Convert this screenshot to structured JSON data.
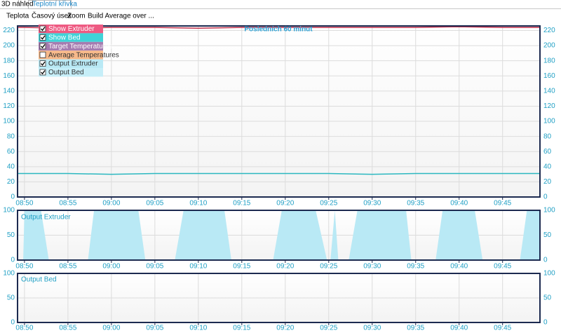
{
  "tabs": [
    "3D náhled",
    "Teplotní křivka"
  ],
  "menu": [
    "Teplota",
    "Časový úsek",
    "Zoom",
    "Build Average over ..."
  ],
  "legend": [
    {
      "name": "Show Extruder",
      "color": "#ee5a82",
      "checked": true
    },
    {
      "name": "Show Bed",
      "color": "#3fd3d8",
      "checked": true
    },
    {
      "name": "Target Temperatures",
      "color": "#a57cb0",
      "checked": true
    },
    {
      "name": "Average Temperatures",
      "color": "#f7b98a",
      "checked": false
    },
    {
      "name": "Output Extruder",
      "color": "#b9e9f5",
      "checked": true
    },
    {
      "name": "Output Bed",
      "color": "#c6eef8",
      "checked": true
    }
  ],
  "chart_data": [
    {
      "type": "line",
      "title": "Posledních 60 minut",
      "x": [
        529.2,
        530,
        535,
        540,
        545,
        550,
        555,
        560,
        565,
        570,
        575,
        580,
        585,
        589.3
      ],
      "series": [
        {
          "color": "#c0304c",
          "values": [
            224,
            224,
            223,
            224,
            224,
            223,
            224,
            224,
            224,
            224,
            224,
            225,
            224,
            224
          ]
        },
        {
          "color": "#2cb8c0",
          "values": [
            31,
            31,
            31,
            30,
            31,
            31,
            31,
            31,
            31,
            30,
            31,
            31,
            31,
            31
          ]
        }
      ],
      "xlim": [
        529.2,
        589.3
      ],
      "xticks": [
        {
          "value": 530,
          "label": "08:50"
        },
        {
          "value": 535,
          "label": "08:55"
        },
        {
          "value": 540,
          "label": "09:00"
        },
        {
          "value": 545,
          "label": "09:05"
        },
        {
          "value": 550,
          "label": "09:10"
        },
        {
          "value": 555,
          "label": "09:15"
        },
        {
          "value": 560,
          "label": "09:20"
        },
        {
          "value": 565,
          "label": "09:25"
        },
        {
          "value": 570,
          "label": "09:30"
        },
        {
          "value": 575,
          "label": "09:35"
        },
        {
          "value": 580,
          "label": "09:40"
        },
        {
          "value": 585,
          "label": "09:45"
        }
      ],
      "ylim": [
        0,
        226
      ],
      "yticks": [
        0,
        20,
        40,
        60,
        80,
        100,
        120,
        140,
        160,
        180,
        200,
        220
      ],
      "grid": true
    },
    {
      "type": "area",
      "title": "Output Extruder",
      "x": [
        529.2,
        529.85,
        530.0,
        531.9,
        532.8,
        537.3,
        538.0,
        543.1,
        543.9,
        547.3,
        548.3,
        553.0,
        553.8,
        558.6,
        559.6,
        563.5,
        564.8,
        565.2,
        565.7,
        566.1,
        567.3,
        568.3,
        573.9,
        574.5,
        577.3,
        578.1,
        581.8,
        582.7,
        587.0,
        587.8,
        589.3
      ],
      "series": [
        {
          "color": "#b9e9f5",
          "values": [
            0,
            0,
            100,
            100,
            0,
            0,
            100,
            100,
            0,
            0,
            100,
            100,
            0,
            0,
            100,
            100,
            0,
            0,
            100,
            0,
            0,
            100,
            100,
            0,
            0,
            100,
            100,
            0,
            0,
            100,
            100
          ]
        }
      ],
      "xlim": [
        529.2,
        589.3
      ],
      "xticks": [
        {
          "value": 530,
          "label": "08:50"
        },
        {
          "value": 535,
          "label": "08:55"
        },
        {
          "value": 540,
          "label": "09:00"
        },
        {
          "value": 545,
          "label": "09:05"
        },
        {
          "value": 550,
          "label": "09:10"
        },
        {
          "value": 555,
          "label": "09:15"
        },
        {
          "value": 560,
          "label": "09:20"
        },
        {
          "value": 565,
          "label": "09:25"
        },
        {
          "value": 570,
          "label": "09:30"
        },
        {
          "value": 575,
          "label": "09:35"
        },
        {
          "value": 580,
          "label": "09:40"
        },
        {
          "value": 585,
          "label": "09:45"
        }
      ],
      "ylim": [
        0,
        100
      ],
      "yticks": [
        0,
        50,
        100
      ],
      "grid": true
    },
    {
      "type": "area",
      "title": "Output Bed",
      "x": [],
      "series": [],
      "xlim": [
        529.2,
        589.3
      ],
      "xticks": [
        {
          "value": 530,
          "label": "08:50"
        },
        {
          "value": 535,
          "label": "08:55"
        },
        {
          "value": 540,
          "label": "09:00"
        },
        {
          "value": 545,
          "label": "09:05"
        },
        {
          "value": 550,
          "label": "09:10"
        },
        {
          "value": 555,
          "label": "09:15"
        },
        {
          "value": 560,
          "label": "09:20"
        },
        {
          "value": 565,
          "label": "09:25"
        },
        {
          "value": 570,
          "label": "09:30"
        },
        {
          "value": 575,
          "label": "09:35"
        },
        {
          "value": 580,
          "label": "09:40"
        },
        {
          "value": 585,
          "label": "09:45"
        }
      ],
      "ylim": [
        0,
        100
      ],
      "yticks": [
        0,
        50,
        100
      ],
      "grid": true
    }
  ]
}
